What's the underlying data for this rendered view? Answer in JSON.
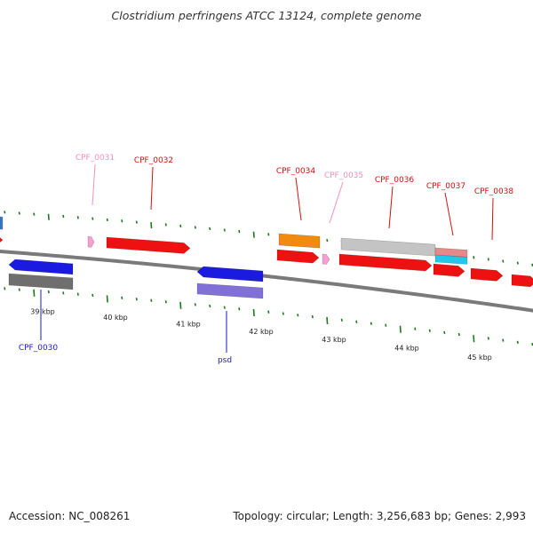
{
  "header": {
    "title": "Clostridium perfringens ATCC 13124, complete genome"
  },
  "footer": {
    "accession": "Accession: NC_008261",
    "topology": "Topology: circular; Length: 3,256,683 bp; Genes: 2,993"
  },
  "colors": {
    "backbone": "#7a7a7a",
    "tick": "#1e7a1e",
    "gene_red": "#ee1111",
    "gene_blue": "#1a1ae0",
    "gene_gray": "#6f6f6f",
    "gene_orange": "#f08a10",
    "gene_pink": "#f5a0cf",
    "gene_lightgray": "#c4c4c4",
    "gene_salmon": "#e88888",
    "gene_cyan": "#22c8e8",
    "gene_lavender": "#8070d8",
    "label_red": "#d01010",
    "label_pink": "#f090c0",
    "label_blue": "#1a1ad0"
  },
  "axis": {
    "unit_labels": [
      "39 kbp",
      "40 kbp",
      "41 kbp",
      "42 kbp",
      "43 kbp",
      "44 kbp",
      "45 kbp"
    ]
  },
  "genes": [
    {
      "name": "CPF_0030",
      "strand": "-",
      "color": "gene_blue"
    },
    {
      "name": "",
      "strand": "-",
      "color": "gene_gray"
    },
    {
      "name": "CPF_0031",
      "strand": "+",
      "color": "gene_pink"
    },
    {
      "name": "CPF_0032",
      "strand": "+",
      "color": "gene_red"
    },
    {
      "name": "psd",
      "strand": "-",
      "color": "gene_blue"
    },
    {
      "name": "",
      "strand": "-",
      "color": "gene_lavender"
    },
    {
      "name": "CPF_0034",
      "strand": "+",
      "color": "gene_red"
    },
    {
      "name": "",
      "strand": "+",
      "color": "gene_orange"
    },
    {
      "name": "CPF_0035",
      "strand": "+",
      "color": "gene_pink"
    },
    {
      "name": "CPF_0036",
      "strand": "+",
      "color": "gene_red"
    },
    {
      "name": "",
      "strand": "+",
      "color": "gene_lightgray"
    },
    {
      "name": "CPF_0037",
      "strand": "+",
      "color": "gene_red"
    },
    {
      "name": "",
      "strand": "+",
      "color": "gene_salmon"
    },
    {
      "name": "",
      "strand": "+",
      "color": "gene_cyan"
    },
    {
      "name": "CPF_0038",
      "strand": "+",
      "color": "gene_red"
    }
  ],
  "gene_labels": [
    {
      "text": "CPF_0030",
      "color": "label_blue"
    },
    {
      "text": "CPF_0031",
      "color": "label_pink"
    },
    {
      "text": "CPF_0032",
      "color": "label_red"
    },
    {
      "text": "psd",
      "color": "label_blue"
    },
    {
      "text": "CPF_0034",
      "color": "label_red"
    },
    {
      "text": "CPF_0035",
      "color": "label_pink"
    },
    {
      "text": "CPF_0036",
      "color": "label_red"
    },
    {
      "text": "CPF_0037",
      "color": "label_red"
    },
    {
      "text": "CPF_0038",
      "color": "label_red"
    }
  ]
}
